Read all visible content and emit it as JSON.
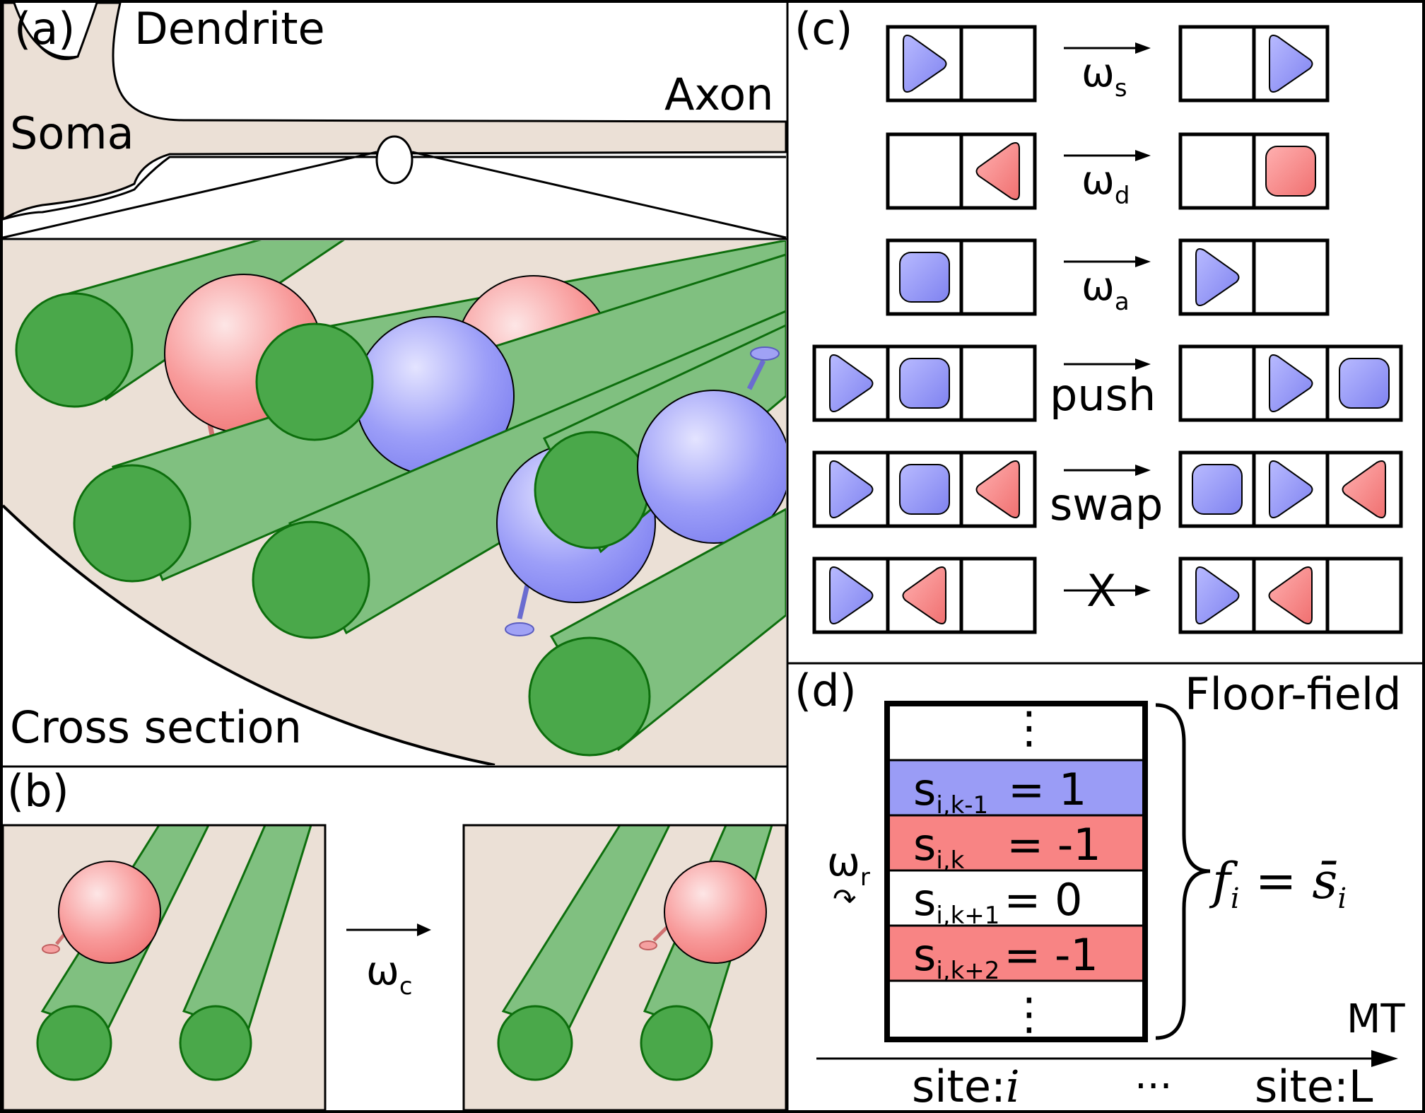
{
  "panel_a": {
    "label": "(a)",
    "dendrite": "Dendrite",
    "axon": "Axon",
    "soma": "Soma",
    "cross_section": "Cross section"
  },
  "panel_b": {
    "label": "(b)",
    "rate": "ω",
    "rate_sub": "c"
  },
  "panel_c": {
    "label": "(c)",
    "rules": [
      {
        "rate": "ω",
        "sub": "s",
        "forbidden": false
      },
      {
        "rate": "ω",
        "sub": "d",
        "forbidden": false
      },
      {
        "rate": "ω",
        "sub": "a",
        "forbidden": false
      },
      {
        "rate": "push",
        "sub": "",
        "forbidden": false
      },
      {
        "rate": "swap",
        "sub": "",
        "forbidden": false
      },
      {
        "rate": "",
        "sub": "",
        "forbidden": true,
        "cross": "X"
      }
    ]
  },
  "panel_d": {
    "label": "(d)",
    "title": "Floor-field",
    "rate": "ω",
    "rate_sub": "r",
    "rotate_glyph": "↷",
    "dots": "⋮",
    "rows": [
      {
        "main": "s",
        "sub": "i,k-1",
        "value": "=  1"
      },
      {
        "main": "s",
        "sub": "i,k",
        "value": "= -1"
      },
      {
        "main": "s",
        "sub": "i,k+1",
        "value": "=  0"
      },
      {
        "main": "s",
        "sub": "i,k+2",
        "value": "= -1"
      }
    ],
    "formula_lhs": "f",
    "formula_lhs_sub": "i",
    "formula_eq": "=",
    "formula_rhs": "s̄",
    "formula_rhs_sub": "i",
    "mt_label": "MT",
    "site_i_prefix": "site:",
    "site_i_var": "i",
    "ellipsis": "···",
    "site_L": "site:L"
  },
  "colors": {
    "blue_motor": "#8a8cf5",
    "red_motor": "#f78080",
    "microtubule": "#4aa84a",
    "microtubule_body": "#80c080",
    "cytoplasm": "#ebe0d6",
    "row_blue": "#9a9cf6",
    "row_red": "#f88484"
  }
}
